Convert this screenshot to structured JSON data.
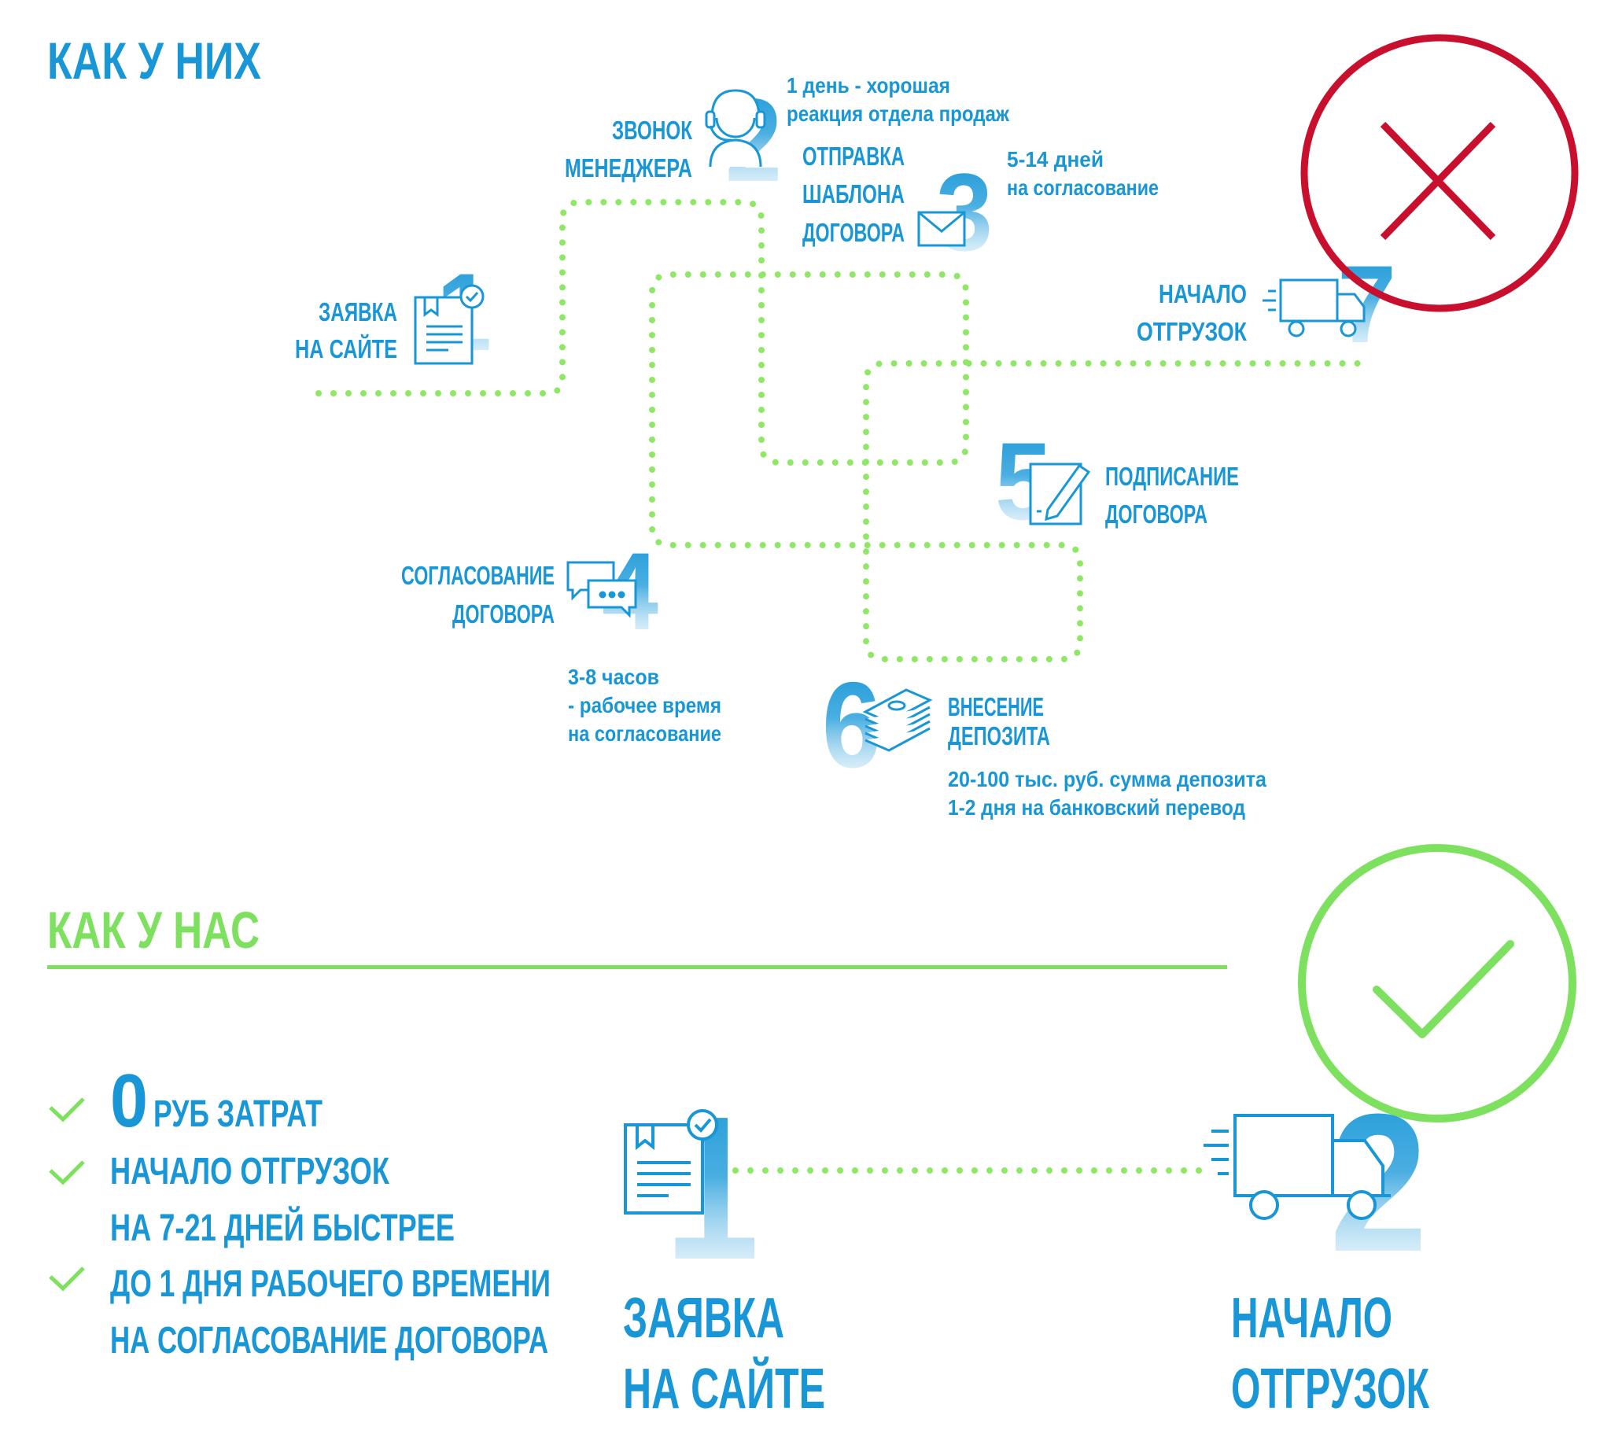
{
  "colors": {
    "blue": "#1996d6",
    "green": "#7ee05f",
    "red": "#c8102e",
    "path_dots": "#8ee866"
  },
  "theirs": {
    "title": "КАК У НИХ",
    "steps": [
      {
        "num": "1",
        "icon": "document-check-icon",
        "lines": [
          "ЗАЯВКА",
          "НА  САЙТЕ"
        ]
      },
      {
        "num": "2",
        "icon": "headset-operator-icon",
        "lines": [
          "ЗВОНОК",
          "МЕНЕДЖЕРА"
        ],
        "note": [
          "1 день - хорошая",
          "реакция отдела продаж"
        ]
      },
      {
        "num": "3",
        "icon": "envelope-icon",
        "lines": [
          "ОТПРАВКА",
          "ШАБЛОНА",
          "ДОГОВОРА"
        ],
        "note": [
          "5-14 дней",
          "на согласование"
        ]
      },
      {
        "num": "4",
        "icon": "chat-bubbles-icon",
        "lines": [
          "СОГЛАСОВАНИЕ",
          "ДОГОВОРА"
        ],
        "note": [
          "3-8 часов",
          "- рабочее время",
          "на согласование"
        ]
      },
      {
        "num": "5",
        "icon": "sign-document-icon",
        "lines": [
          "ПОДПИСАНИЕ",
          "ДОГОВОРА"
        ]
      },
      {
        "num": "6",
        "icon": "money-stack-icon",
        "lines": [
          "ВНЕСЕНИЕ",
          "ДЕПОЗИТА"
        ],
        "note": [
          "20-100 тыс. руб. сумма депозита",
          "1-2 дня на банковский перевод"
        ]
      },
      {
        "num": "7",
        "icon": "delivery-truck-icon",
        "lines": [
          "НАЧАЛО",
          "ОТГРУЗОК"
        ]
      }
    ],
    "verdict_icon": "cross-circle-icon"
  },
  "ours": {
    "title": "КАК У НАС",
    "benefits": [
      {
        "big": "0",
        "text": [
          "РУБ ЗАТРАТ"
        ]
      },
      {
        "text": [
          "НАЧАЛО ОТГРУЗОК",
          "НА 7-21 ДНЕЙ БЫСТРЕЕ"
        ]
      },
      {
        "text": [
          "ДО 1 ДНЯ РАБОЧЕГО ВРЕМЕНИ",
          "НА СОГЛАСОВАНИЕ ДОГОВОРА"
        ]
      }
    ],
    "steps": [
      {
        "num": "1",
        "icon": "document-check-icon",
        "lines": [
          "ЗАЯВКА",
          "НА  САЙТЕ"
        ]
      },
      {
        "num": "2",
        "icon": "delivery-truck-icon",
        "lines": [
          "НАЧАЛО",
          "ОТГРУЗОК"
        ]
      }
    ],
    "verdict_icon": "check-circle-icon"
  }
}
